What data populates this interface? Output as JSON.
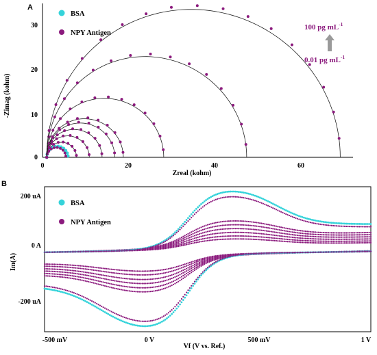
{
  "colors": {
    "bsa": "#35d3da",
    "npy": "#8b1a7d",
    "fit_line": "#222222",
    "arrow": "#9a9a9a"
  },
  "chart_data": [
    {
      "panel": "A",
      "type": "scatter",
      "xlabel": "Zreal (kohm)",
      "ylabel": "-Zimag (kohm)",
      "xlim": [
        0,
        73
      ],
      "ylim": [
        0,
        35
      ],
      "xticks": [
        "0",
        "20",
        "40",
        "60"
      ],
      "yticks": [
        "0",
        "10",
        "20",
        "30"
      ],
      "legend": [
        "BSA",
        "NPY Antigen"
      ],
      "legend_position": "top-left",
      "annotations": {
        "top": "100 pg mL",
        "top_sup": "-1",
        "bottom": "0.01 pg mL",
        "bottom_sup": "-1"
      },
      "series": [
        {
          "name": "BSA",
          "x_start": 1.0,
          "x_end": 6.0,
          "points": 12
        },
        {
          "name": "NPY Antigen",
          "x_start": 1.0,
          "x_end": 5.5,
          "points": 10
        },
        {
          "name": "NPY Antigen",
          "x_start": 1.0,
          "x_end": 8.0,
          "points": 10
        },
        {
          "name": "NPY Antigen",
          "x_start": 1.0,
          "x_end": 11.0,
          "points": 10
        },
        {
          "name": "NPY Antigen",
          "x_start": 1.0,
          "x_end": 14.0,
          "points": 11
        },
        {
          "name": "NPY Antigen",
          "x_start": 1.0,
          "x_end": 17.0,
          "points": 11
        },
        {
          "name": "NPY Antigen",
          "x_start": 1.0,
          "x_end": 19.0,
          "points": 12
        },
        {
          "name": "NPY Antigen",
          "x_start": 1.0,
          "x_end": 28.5,
          "points": 14
        },
        {
          "name": "NPY Antigen",
          "x_start": 1.0,
          "x_end": 48.0,
          "points": 16
        },
        {
          "name": "NPY Antigen",
          "x_start": 1.0,
          "x_end": 70.0,
          "points": 18
        }
      ]
    },
    {
      "panel": "B",
      "type": "line",
      "xlabel": "Vf (V vs. Ref.)",
      "ylabel": "Im(A)",
      "xlim": [
        -0.55,
        1.0
      ],
      "ylim": [
        -280,
        230
      ],
      "xticks": [
        "-500 mV",
        "0 V",
        "500 mV",
        "1 V"
      ],
      "yticks": [
        "200 uA",
        "0 A",
        "-200 uA"
      ],
      "legend": [
        "BSA",
        "NPY Antigen"
      ],
      "legend_position": "top-left",
      "cv_peaks_uA": {
        "bsa": {
          "anodic": 205,
          "cathodic": -258
        },
        "npy_largest": {
          "anodic": 188,
          "cathodic": -242
        },
        "npy_others": [
          {
            "anodic": 92,
            "cathodic": -125
          },
          {
            "anodic": 80,
            "cathodic": -112
          },
          {
            "anodic": 68,
            "cathodic": -98
          },
          {
            "anodic": 56,
            "cathodic": -85
          },
          {
            "anodic": 45,
            "cathodic": -70
          },
          {
            "anodic": 36,
            "cathodic": -58
          }
        ]
      }
    }
  ],
  "panels": {
    "a": {
      "letter": "A"
    },
    "b": {
      "letter": "B"
    }
  }
}
